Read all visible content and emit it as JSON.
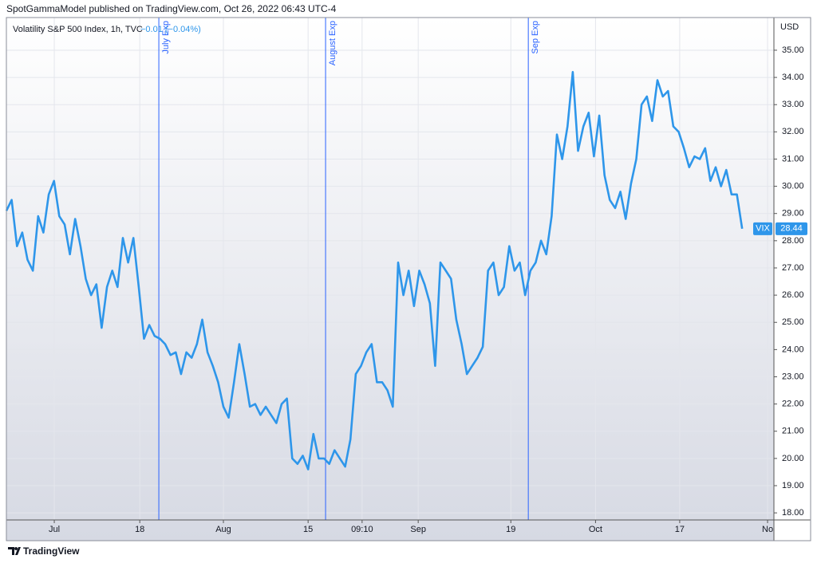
{
  "header": "SpotGammaModel published on TradingView.com, Oct 26, 2022 06:43 UTC-4",
  "footer": "TradingView",
  "chart_data": {
    "type": "line",
    "title": "Volatility S&P 500 Index, 1h, TVC",
    "subtitle": "−0.01 (−0.04%)",
    "currency": "USD",
    "series": [
      {
        "name": "VIX",
        "color": "#2e96ea",
        "values": [
          29.1,
          29.5,
          27.8,
          28.3,
          27.3,
          26.9,
          28.9,
          28.3,
          29.7,
          30.2,
          28.9,
          28.6,
          27.5,
          28.8,
          27.8,
          26.6,
          26.0,
          26.4,
          24.8,
          26.3,
          26.9,
          26.3,
          28.1,
          27.2,
          28.1,
          26.3,
          24.4,
          24.9,
          24.5,
          24.4,
          24.2,
          23.8,
          23.9,
          23.1,
          23.9,
          23.7,
          24.2,
          25.1,
          23.9,
          23.4,
          22.8,
          21.9,
          21.5,
          22.8,
          24.2,
          23.1,
          21.9,
          22.0,
          21.6,
          21.9,
          21.6,
          21.3,
          22.0,
          22.2,
          20.0,
          19.8,
          20.1,
          19.6,
          20.9,
          20.0,
          20.0,
          19.8,
          20.3,
          20.0,
          19.7,
          20.7,
          23.1,
          23.4,
          23.9,
          24.2,
          22.8,
          22.8,
          22.5,
          21.9,
          27.2,
          26.0,
          26.9,
          25.6,
          26.9,
          26.4,
          25.7,
          23.4,
          27.2,
          26.9,
          26.6,
          25.1,
          24.2,
          23.1,
          23.4,
          23.7,
          24.1,
          26.9,
          27.2,
          26.0,
          26.3,
          27.8,
          26.9,
          27.2,
          26.0,
          26.9,
          27.2,
          28.0,
          27.5,
          28.9,
          31.9,
          31.0,
          32.2,
          34.2,
          31.3,
          32.2,
          32.7,
          31.1,
          32.6,
          30.4,
          29.5,
          29.2,
          29.8,
          28.8,
          30.1,
          31.0,
          33.0,
          33.3,
          32.4,
          33.9,
          33.3,
          33.5,
          32.2,
          32.0,
          31.4,
          30.7,
          31.1,
          31.0,
          31.4,
          30.2,
          30.7,
          30.0,
          30.6,
          29.7,
          29.7,
          28.44
        ]
      }
    ],
    "xlim": [
      0,
      145
    ],
    "xticks": [
      {
        "value": 9.05,
        "label": "Jul"
      },
      {
        "value": 25.2,
        "label": "18"
      },
      {
        "value": 41.0,
        "label": "Aug"
      },
      {
        "value": 57.0,
        "label": "15"
      },
      {
        "value": 67.2,
        "label": "09:10"
      },
      {
        "value": 77.8,
        "label": "Sep"
      },
      {
        "value": 95.3,
        "label": "19"
      },
      {
        "value": 111.3,
        "label": "Oct"
      },
      {
        "value": 127.2,
        "label": "17"
      },
      {
        "value": 143.8,
        "label": "No"
      }
    ],
    "ylim": [
      17.74,
      36.2
    ],
    "yticks": [
      {
        "value": 18,
        "label": "18.00"
      },
      {
        "value": 19,
        "label": "19.00"
      },
      {
        "value": 20,
        "label": "20.00"
      },
      {
        "value": 21,
        "label": "21.00"
      },
      {
        "value": 22,
        "label": "22.00"
      },
      {
        "value": 23,
        "label": "23.00"
      },
      {
        "value": 24,
        "label": "24.00"
      },
      {
        "value": 25,
        "label": "25.00"
      },
      {
        "value": 26,
        "label": "26.00"
      },
      {
        "value": 27,
        "label": "27.00"
      },
      {
        "value": 28,
        "label": "28.00"
      },
      {
        "value": 29,
        "label": "29.00"
      },
      {
        "value": 30,
        "label": "30.00"
      },
      {
        "value": 31,
        "label": "31.00"
      },
      {
        "value": 32,
        "label": "32.00"
      },
      {
        "value": 33,
        "label": "33.00"
      },
      {
        "value": 34,
        "label": "34.00"
      },
      {
        "value": 35,
        "label": "35.00"
      }
    ],
    "grid": true,
    "annotations": [
      {
        "label": "July Exp",
        "x": 28.8
      },
      {
        "label": "August Exp",
        "x": 60.3
      },
      {
        "label": "Sep Exp",
        "x": 98.6
      }
    ],
    "annotation_color": "#2962ff"
  }
}
